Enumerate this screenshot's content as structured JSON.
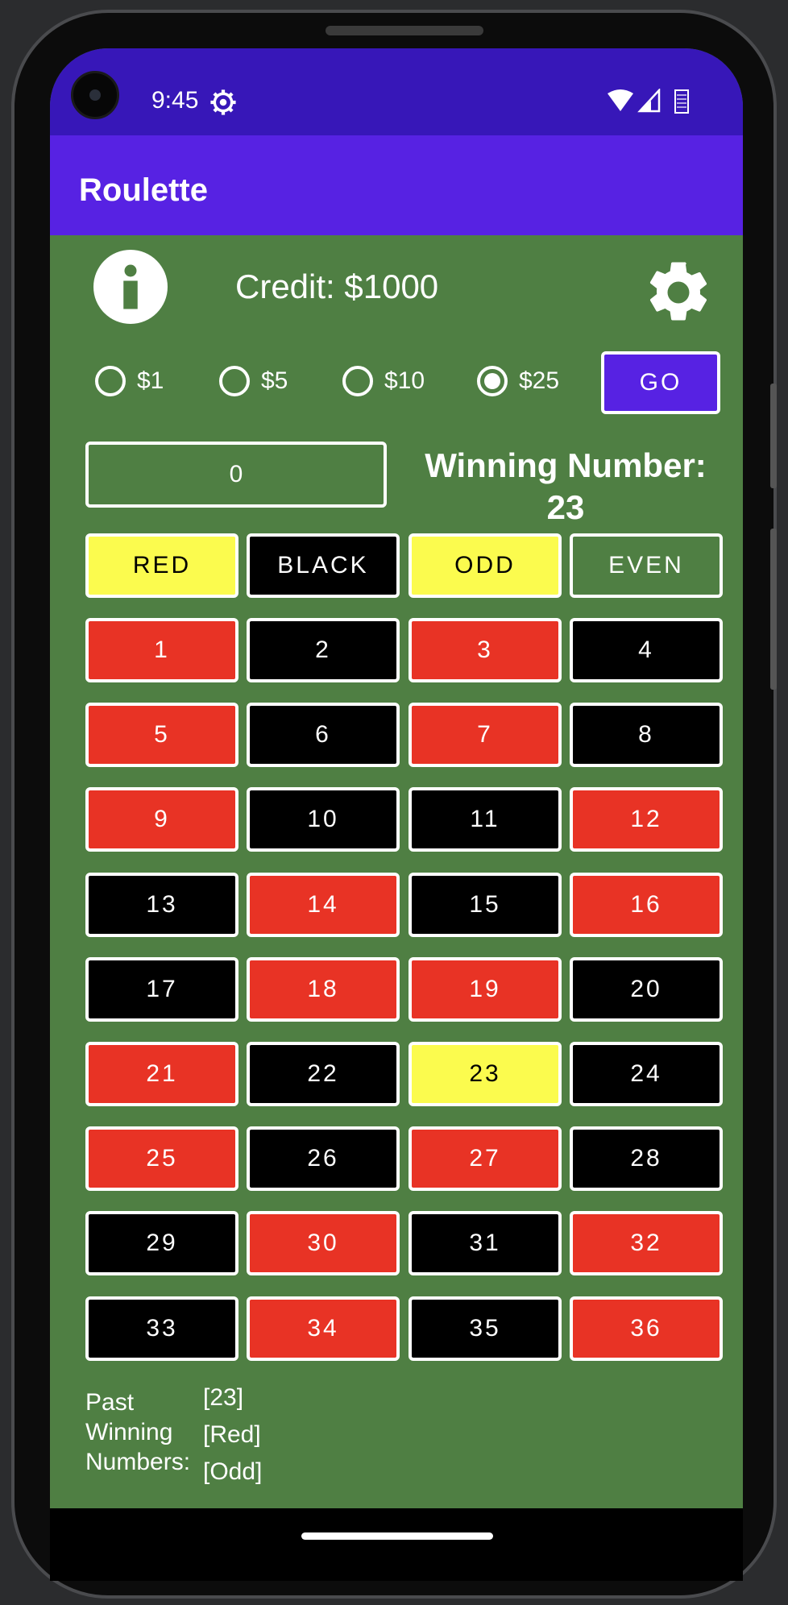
{
  "status": {
    "time": "9:45"
  },
  "app": {
    "title": "Roulette"
  },
  "credit": {
    "text": "Credit: $1000"
  },
  "bets": [
    {
      "label": "$1",
      "selected": false
    },
    {
      "label": "$5",
      "selected": false
    },
    {
      "label": "$10",
      "selected": false
    },
    {
      "label": "$25",
      "selected": true
    }
  ],
  "go_label": "GO",
  "bet_value": "0",
  "winning": {
    "label": "Winning Number:",
    "number": "23"
  },
  "outside_bets": [
    {
      "label": "RED",
      "color": "yellow"
    },
    {
      "label": "BLACK",
      "color": "black"
    },
    {
      "label": "ODD",
      "color": "yellow"
    },
    {
      "label": "EVEN",
      "color": "green"
    }
  ],
  "numbers": [
    {
      "n": "1",
      "color": "red"
    },
    {
      "n": "2",
      "color": "black"
    },
    {
      "n": "3",
      "color": "red"
    },
    {
      "n": "4",
      "color": "black"
    },
    {
      "n": "5",
      "color": "red"
    },
    {
      "n": "6",
      "color": "black"
    },
    {
      "n": "7",
      "color": "red"
    },
    {
      "n": "8",
      "color": "black"
    },
    {
      "n": "9",
      "color": "red"
    },
    {
      "n": "10",
      "color": "black"
    },
    {
      "n": "11",
      "color": "black"
    },
    {
      "n": "12",
      "color": "red"
    },
    {
      "n": "13",
      "color": "black"
    },
    {
      "n": "14",
      "color": "red"
    },
    {
      "n": "15",
      "color": "black"
    },
    {
      "n": "16",
      "color": "red"
    },
    {
      "n": "17",
      "color": "black"
    },
    {
      "n": "18",
      "color": "red"
    },
    {
      "n": "19",
      "color": "red"
    },
    {
      "n": "20",
      "color": "black"
    },
    {
      "n": "21",
      "color": "red"
    },
    {
      "n": "22",
      "color": "black"
    },
    {
      "n": "23",
      "color": "yellow"
    },
    {
      "n": "24",
      "color": "black"
    },
    {
      "n": "25",
      "color": "red"
    },
    {
      "n": "26",
      "color": "black"
    },
    {
      "n": "27",
      "color": "red"
    },
    {
      "n": "28",
      "color": "black"
    },
    {
      "n": "29",
      "color": "black"
    },
    {
      "n": "30",
      "color": "red"
    },
    {
      "n": "31",
      "color": "black"
    },
    {
      "n": "32",
      "color": "red"
    },
    {
      "n": "33",
      "color": "black"
    },
    {
      "n": "34",
      "color": "red"
    },
    {
      "n": "35",
      "color": "black"
    },
    {
      "n": "36",
      "color": "red"
    }
  ],
  "palette": {
    "red": "#e83325",
    "black": "#000000",
    "yellow": "#fbfb4e",
    "green": "#4f7f43"
  },
  "past": {
    "label_lines": [
      "Past",
      "Winning",
      "Numbers:"
    ],
    "values": [
      "[23]",
      "[Red]",
      "[Odd]"
    ]
  }
}
